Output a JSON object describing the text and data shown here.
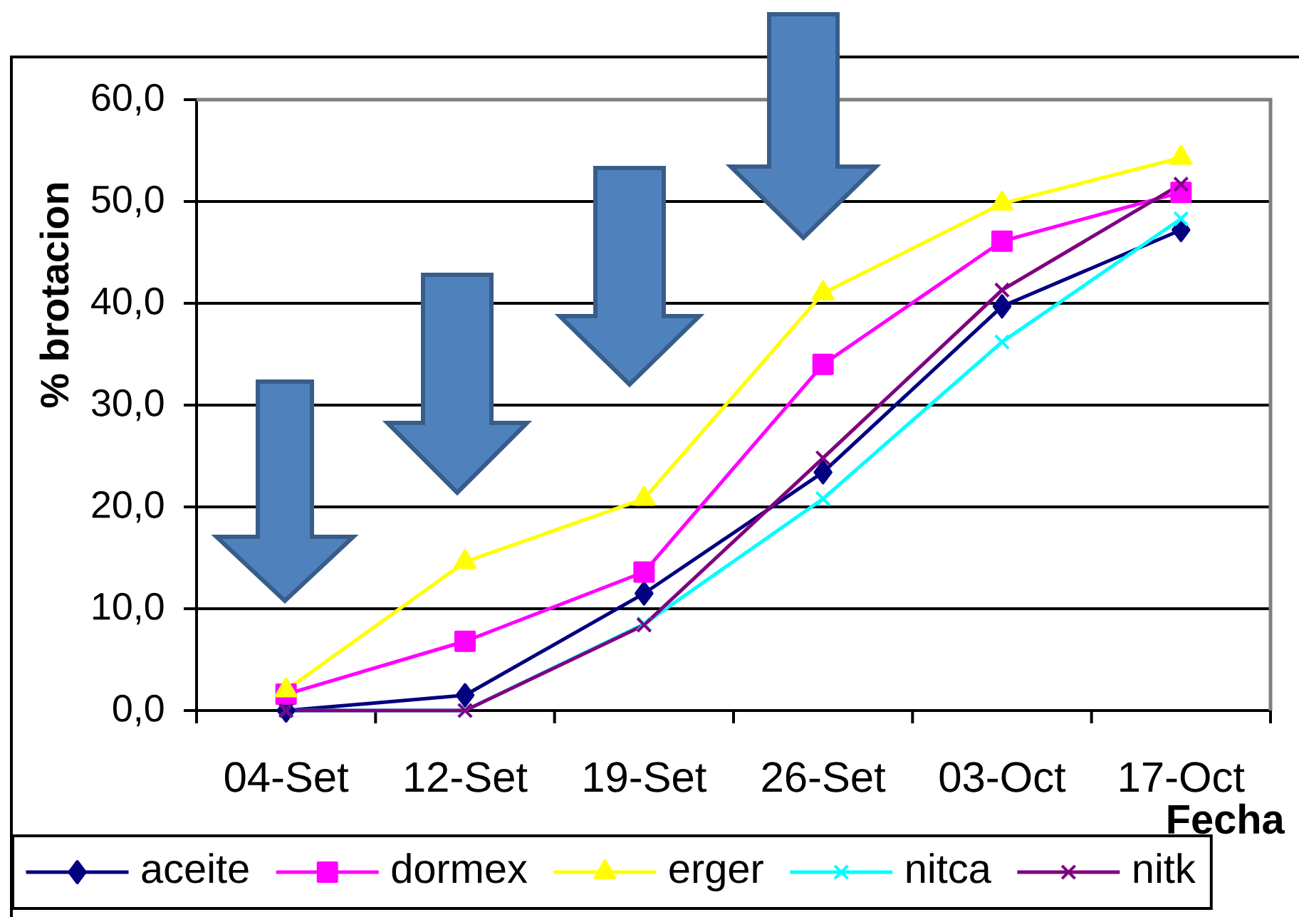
{
  "chart_data": {
    "type": "line",
    "xlabel": "Fecha",
    "ylabel": "% brotacion",
    "categories": [
      "04-Set",
      "12-Set",
      "19-Set",
      "26-Set",
      "03-Oct",
      "17-Oct"
    ],
    "ylim": [
      0,
      60
    ],
    "yticks": [
      {
        "value": 0,
        "label": "0,0"
      },
      {
        "value": 10,
        "label": "10,0"
      },
      {
        "value": 20,
        "label": "20,0"
      },
      {
        "value": 30,
        "label": "30,0"
      },
      {
        "value": 40,
        "label": "40,0"
      },
      {
        "value": 50,
        "label": "50,0"
      },
      {
        "value": 60,
        "label": "60,0"
      }
    ],
    "grid": "y",
    "legend": "bottom",
    "line_style": "solid",
    "series": [
      {
        "name": "aceite",
        "color": "#000080",
        "marker": "diamond",
        "values": [
          0.0,
          1.5,
          11.5,
          23.4,
          39.7,
          47.2
        ]
      },
      {
        "name": "dormex",
        "color": "#ff00ff",
        "marker": "square",
        "values": [
          1.6,
          6.8,
          13.6,
          34.0,
          46.1,
          50.9
        ]
      },
      {
        "name": "erger",
        "color": "#ffff00",
        "marker": "triangle",
        "values": [
          2.0,
          14.6,
          20.8,
          41.0,
          49.8,
          54.3
        ]
      },
      {
        "name": "nitca",
        "color": "#00ffff",
        "marker": "cross",
        "values": [
          0.0,
          0.0,
          8.5,
          20.8,
          36.2,
          48.3
        ]
      },
      {
        "name": "nitk",
        "color": "#800080",
        "marker": "cross",
        "values": [
          0.0,
          0.0,
          8.4,
          24.8,
          41.3,
          51.7
        ]
      }
    ]
  }
}
